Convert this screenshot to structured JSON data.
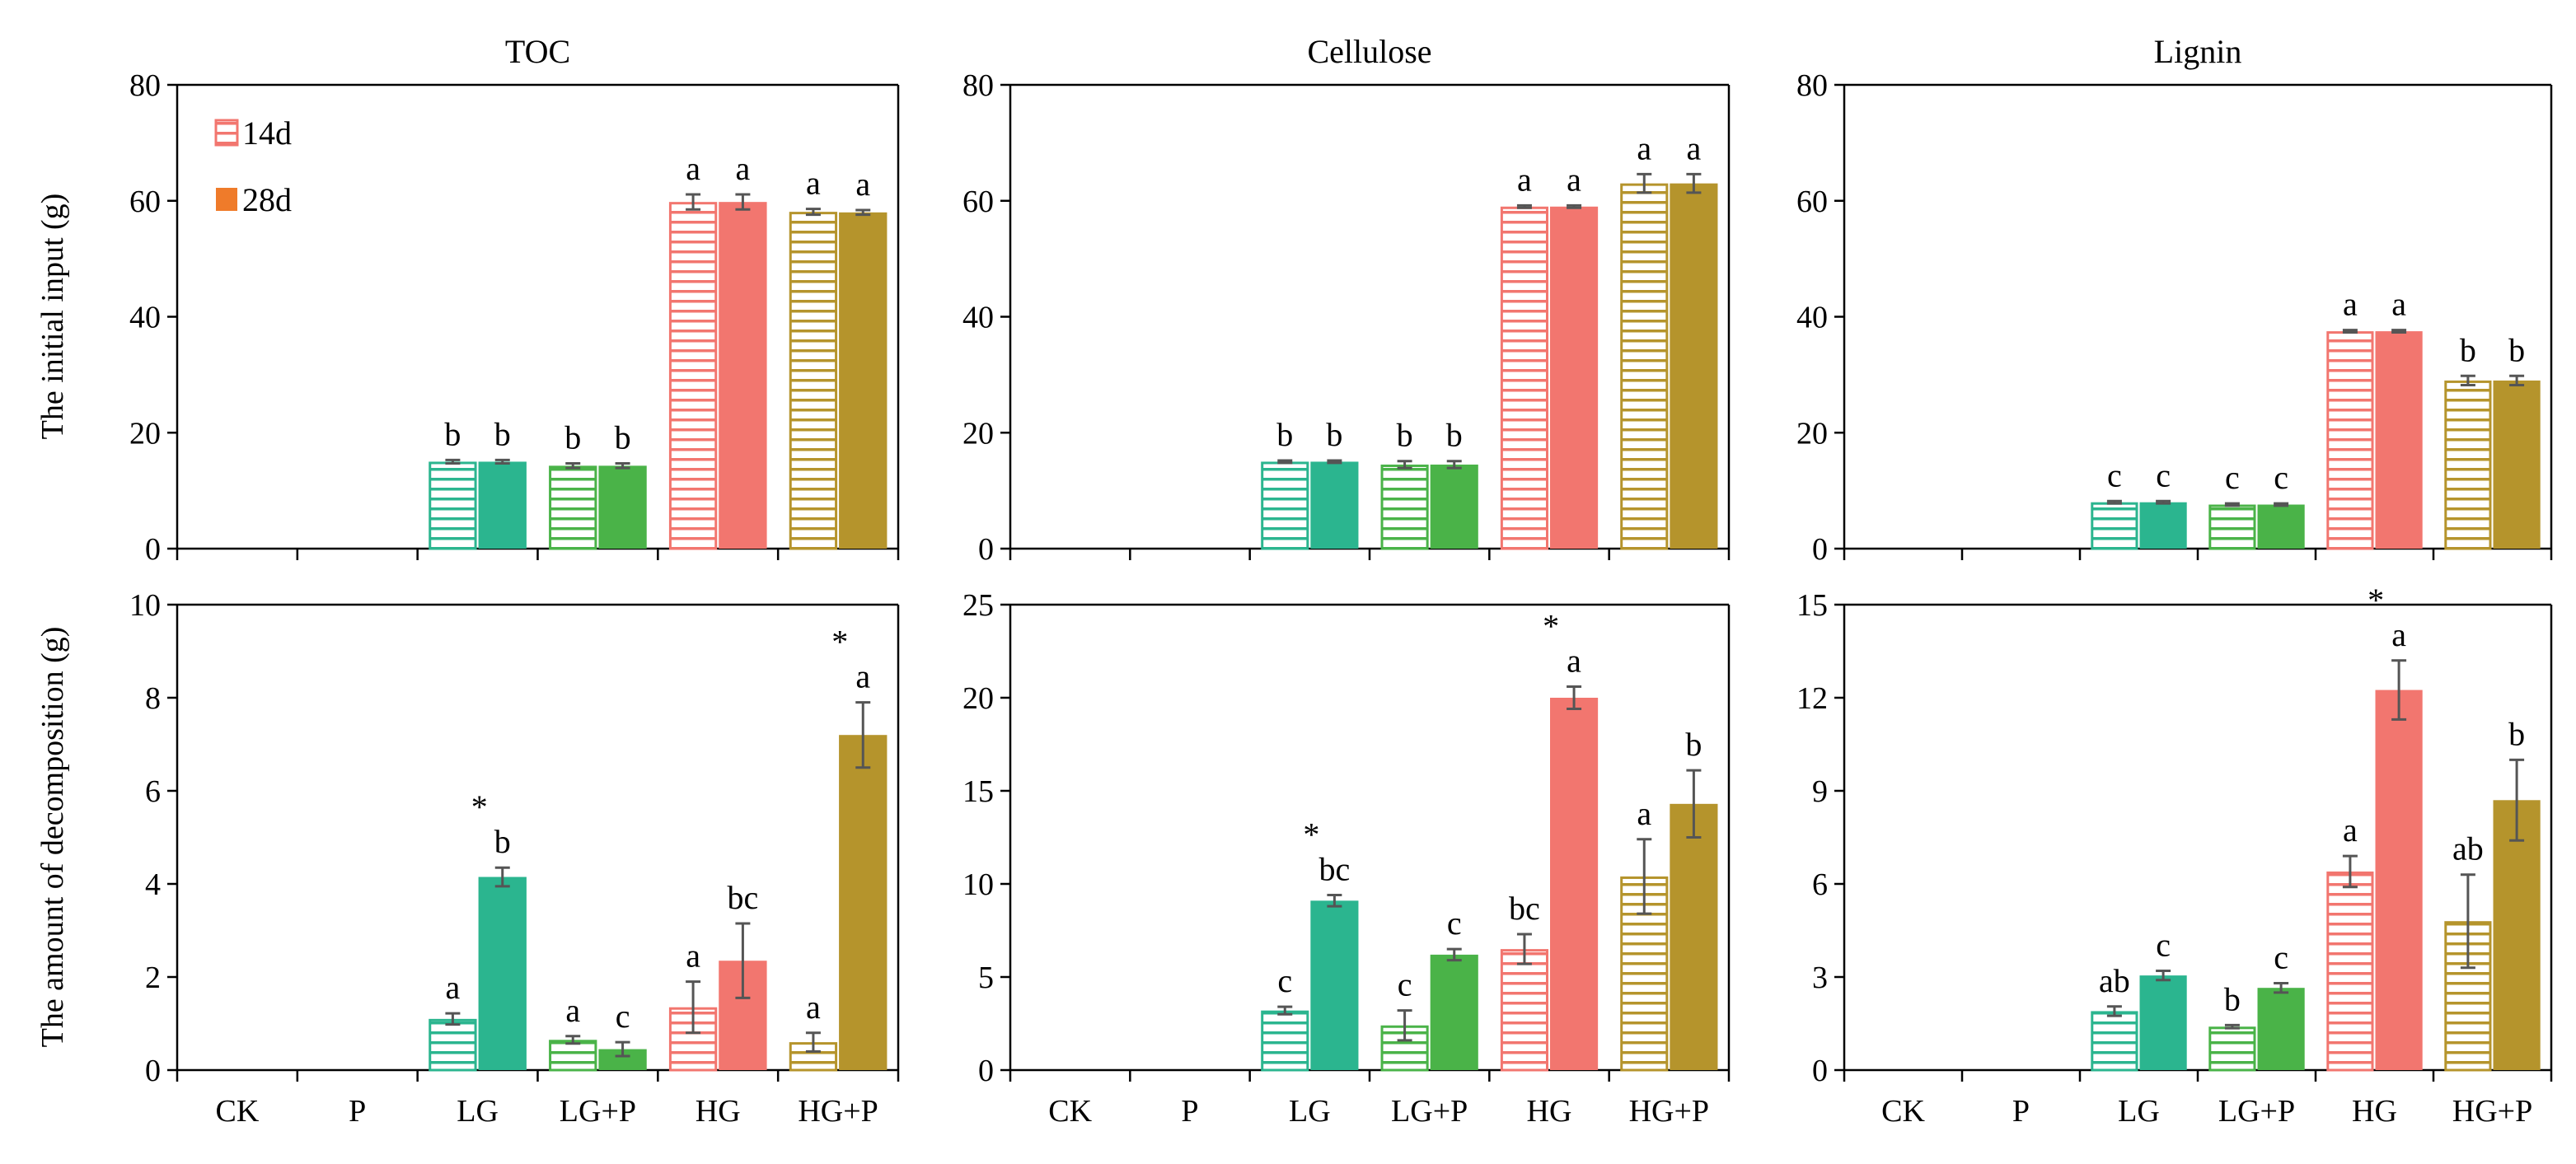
{
  "chart_data": {
    "type": "bar",
    "categories": [
      "CK",
      "P",
      "LG",
      "LG+P",
      "HG",
      "HG+P"
    ],
    "series_names": [
      "14d",
      "28d"
    ],
    "legend": {
      "position": "top-left",
      "entries": [
        "14d",
        "28d"
      ]
    },
    "colors": {
      "LG": "#2bb58f",
      "LG+P": "#4ab348",
      "HG": "#f2766f",
      "HG+P": "#b5942c",
      "legend_14d": "#f2766f",
      "legend_28d": "#ef7b2a",
      "error": "#555555",
      "axis": "#000000"
    },
    "rows": [
      {
        "name": "initial",
        "ylabel": "The initial input (g)"
      },
      {
        "name": "decomposition",
        "ylabel": "The amount of decomposition (g)"
      }
    ],
    "panels": [
      {
        "id": "toc-initial",
        "title": "TOC",
        "row": 0,
        "col": 0,
        "ylim": [
          0,
          80
        ],
        "yticks": [
          0,
          20,
          40,
          60,
          80
        ],
        "values_14d": [
          0,
          0,
          15.0,
          14.3,
          59.8,
          58.1
        ],
        "values_28d": [
          0,
          0,
          15.0,
          14.3,
          59.8,
          58.0
        ],
        "errors_14d": [
          0,
          0,
          0.3,
          0.4,
          1.3,
          0.5
        ],
        "errors_28d": [
          0,
          0,
          0.3,
          0.4,
          1.3,
          0.4
        ],
        "labels_14d": [
          "",
          "",
          "b",
          "b",
          "a",
          "a"
        ],
        "labels_28d": [
          "",
          "",
          "b",
          "b",
          "a",
          "a"
        ],
        "stars": [
          "",
          "",
          "",
          "",
          "",
          ""
        ]
      },
      {
        "id": "cellulose-initial",
        "title": "Cellulose",
        "row": 0,
        "col": 1,
        "ylim": [
          0,
          80
        ],
        "yticks": [
          0,
          20,
          40,
          60,
          80
        ],
        "values_14d": [
          0,
          0,
          15.0,
          14.5,
          59.0,
          63.0
        ],
        "values_28d": [
          0,
          0,
          15.0,
          14.5,
          59.0,
          63.0
        ],
        "errors_14d": [
          0,
          0,
          0.2,
          0.6,
          0.2,
          1.6
        ],
        "errors_28d": [
          0,
          0,
          0.2,
          0.6,
          0.2,
          1.6
        ],
        "labels_14d": [
          "",
          "",
          "b",
          "b",
          "a",
          "a"
        ],
        "labels_28d": [
          "",
          "",
          "b",
          "b",
          "a",
          "a"
        ],
        "stars": [
          "",
          "",
          "",
          "",
          "",
          ""
        ]
      },
      {
        "id": "lignin-initial",
        "title": "Lignin",
        "row": 0,
        "col": 2,
        "ylim": [
          0,
          80
        ],
        "yticks": [
          0,
          20,
          40,
          60,
          80
        ],
        "values_14d": [
          0,
          0,
          8.0,
          7.6,
          37.5,
          29.0
        ],
        "values_28d": [
          0,
          0,
          8.0,
          7.6,
          37.5,
          29.0
        ],
        "errors_14d": [
          0,
          0,
          0.2,
          0.2,
          0.2,
          0.8
        ],
        "errors_28d": [
          0,
          0,
          0.2,
          0.2,
          0.2,
          0.8
        ],
        "labels_14d": [
          "",
          "",
          "c",
          "c",
          "a",
          "b"
        ],
        "labels_28d": [
          "",
          "",
          "c",
          "c",
          "a",
          "b"
        ],
        "stars": [
          "",
          "",
          "",
          "",
          "",
          ""
        ]
      },
      {
        "id": "toc-decomposition",
        "title": "",
        "row": 1,
        "col": 0,
        "ylim": [
          0,
          10
        ],
        "yticks": [
          0,
          2,
          4,
          6,
          8,
          10
        ],
        "values_14d": [
          0,
          0,
          1.1,
          0.65,
          1.35,
          0.6
        ],
        "values_28d": [
          0,
          0,
          4.15,
          0.45,
          2.35,
          7.2
        ],
        "errors_14d": [
          0,
          0,
          0.12,
          0.08,
          0.55,
          0.2
        ],
        "errors_28d": [
          0,
          0,
          0.2,
          0.15,
          0.8,
          0.7
        ],
        "labels_14d": [
          "",
          "",
          "a",
          "a",
          "a",
          "a"
        ],
        "labels_28d": [
          "",
          "",
          "b",
          "c",
          "bc",
          "a"
        ],
        "stars": [
          "",
          "",
          "*",
          "",
          "",
          "*"
        ]
      },
      {
        "id": "cellulose-decomposition",
        "title": "",
        "row": 1,
        "col": 1,
        "ylim": [
          0,
          25
        ],
        "yticks": [
          0,
          5,
          10,
          15,
          20,
          25
        ],
        "values_14d": [
          0,
          0,
          3.2,
          2.4,
          6.5,
          10.4
        ],
        "values_28d": [
          0,
          0,
          9.1,
          6.2,
          20.0,
          14.3
        ],
        "errors_14d": [
          0,
          0,
          0.2,
          0.8,
          0.8,
          2.0
        ],
        "errors_28d": [
          0,
          0,
          0.3,
          0.3,
          0.6,
          1.8
        ],
        "labels_14d": [
          "",
          "",
          "c",
          "c",
          "bc",
          "a"
        ],
        "labels_28d": [
          "",
          "",
          "bc",
          "c",
          "a",
          "b"
        ],
        "stars": [
          "",
          "",
          "*",
          "",
          "*",
          ""
        ]
      },
      {
        "id": "lignin-decomposition",
        "title": "",
        "row": 1,
        "col": 2,
        "ylim": [
          0,
          15
        ],
        "yticks": [
          0,
          3,
          6,
          9,
          12,
          15
        ],
        "values_14d": [
          0,
          0,
          1.9,
          1.4,
          6.4,
          4.8
        ],
        "values_28d": [
          0,
          0,
          3.05,
          2.65,
          12.25,
          8.7
        ],
        "errors_14d": [
          0,
          0,
          0.15,
          0.05,
          0.5,
          1.5
        ],
        "errors_28d": [
          0,
          0,
          0.15,
          0.15,
          0.95,
          1.3
        ],
        "labels_14d": [
          "",
          "",
          "ab",
          "b",
          "a",
          "ab"
        ],
        "labels_28d": [
          "",
          "",
          "c",
          "c",
          "a",
          "b"
        ],
        "stars": [
          "",
          "",
          "",
          "",
          "*",
          ""
        ]
      }
    ]
  }
}
